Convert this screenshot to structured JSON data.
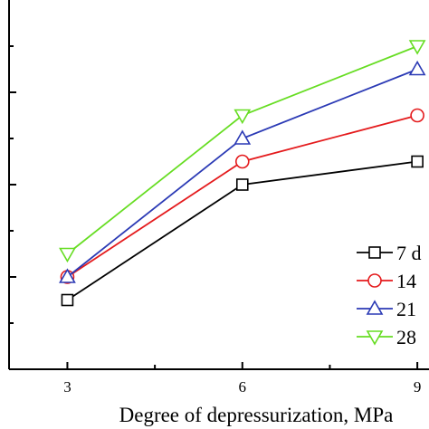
{
  "chart_data": {
    "type": "line",
    "title": "",
    "xlabel": "Degree of depressurization, MPa",
    "ylabel": "",
    "x": [
      3,
      6,
      9
    ],
    "xticks": [
      "3",
      "6",
      "9"
    ],
    "xlim": [
      2,
      9.2
    ],
    "ylim": [
      0,
      8
    ],
    "yticks_labeled": false,
    "grid": false,
    "legend_position": "bottom-right",
    "series": [
      {
        "name": "7 d",
        "marker": "square",
        "color": "#000000",
        "values": [
          1.5,
          4.0,
          4.5
        ]
      },
      {
        "name": "14",
        "marker": "circle",
        "color": "#e41a1c",
        "values": [
          2.0,
          4.5,
          5.5
        ]
      },
      {
        "name": "21",
        "marker": "triangle-up",
        "color": "#2b3ab5",
        "values": [
          2.0,
          5.0,
          6.5
        ]
      },
      {
        "name": "28",
        "marker": "triangle-down",
        "color": "#66dd22",
        "values": [
          2.5,
          5.5,
          7.0
        ]
      }
    ]
  }
}
